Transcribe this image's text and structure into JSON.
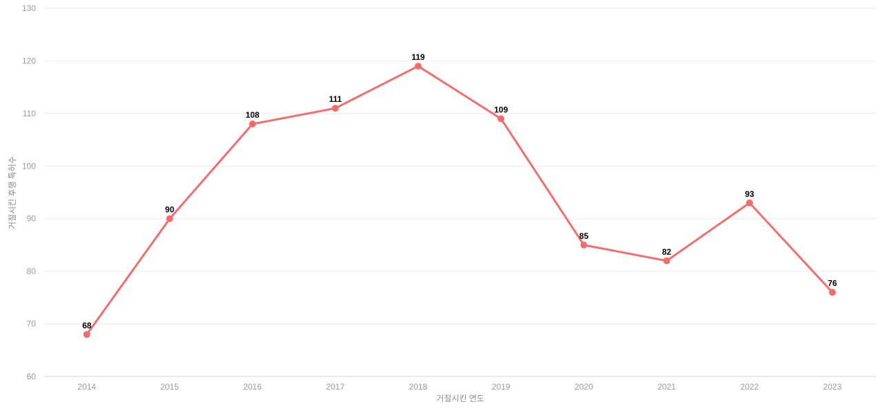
{
  "chart_data": {
    "type": "line",
    "title": "",
    "categories": [
      "2014",
      "2015",
      "2016",
      "2017",
      "2018",
      "2019",
      "2020",
      "2021",
      "2022",
      "2023"
    ],
    "values": [
      68,
      90,
      108,
      111,
      119,
      109,
      85,
      82,
      93,
      76
    ],
    "data_labels": [
      "68",
      "90",
      "108",
      "111",
      "119",
      "109",
      "85",
      "82",
      "93",
      "76"
    ],
    "xlabel": "거절시킨 연도",
    "ylabel": "거절시킨 후행 특허수",
    "ylim": [
      60,
      130
    ],
    "ytick_step": 10,
    "yticks": [
      "60",
      "70",
      "80",
      "90",
      "100",
      "110",
      "120",
      "130"
    ],
    "grid": "horizontal",
    "legend": "none",
    "colors": {
      "line": "#f56c6c",
      "point": "#f56c6c",
      "grid_line": "#e8e8e8",
      "axis_line": "#ccd6eb",
      "tick_text": "#999999",
      "axis_title_text": "#8c8c8c",
      "data_label_text": "#000000",
      "background": "#ffffff"
    }
  }
}
